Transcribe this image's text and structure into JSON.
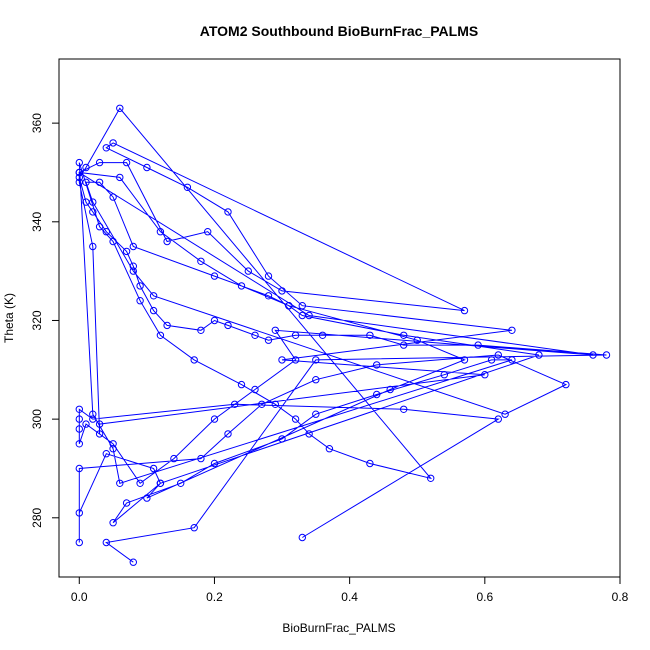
{
  "chart_data": {
    "type": "scatter",
    "title": "ATOM2 Southbound BioBurnFrac_PALMS",
    "xlabel": "BioBurnFrac_PALMS",
    "ylabel": "Theta (K)",
    "xlim": [
      -0.03,
      0.8
    ],
    "ylim": [
      268,
      373
    ],
    "xticks": [
      0.0,
      0.2,
      0.4,
      0.6,
      0.8
    ],
    "xtick_labels": [
      "0.0",
      "0.2",
      "0.4",
      "0.6",
      "0.8"
    ],
    "yticks": [
      280,
      300,
      320,
      340,
      360
    ],
    "ytick_labels": [
      "280",
      "300",
      "320",
      "340",
      "360"
    ],
    "grid": false,
    "legend": "none",
    "color": "#0000ff",
    "series": [
      {
        "style": "points-and-lines",
        "x": [
          0.33,
          0.62,
          0.48,
          0.23,
          0.02,
          0.0,
          0.0,
          0.0,
          0.0,
          0.01,
          0.05,
          0.09,
          0.14,
          0.2,
          0.26,
          0.32,
          0.29,
          0.76,
          0.34,
          0.0,
          0.03,
          0.07,
          0.13,
          0.19,
          0.25,
          0.3,
          0.57,
          0.05,
          0.04,
          0.1,
          0.16,
          0.22,
          0.28,
          0.33,
          0.64,
          0.3,
          0.6,
          0.03,
          0.03,
          0.02,
          0.0,
          0.0,
          0.06,
          0.12,
          0.18,
          0.24,
          0.31,
          0.5,
          0.57,
          0.46,
          0.1,
          0.12,
          0.11,
          0.04,
          0.0,
          0.0,
          0.0,
          0.18,
          0.22,
          0.27,
          0.35,
          0.44,
          0.62,
          0.72,
          0.63,
          0.11,
          0.08,
          0.02,
          0.01,
          0.03,
          0.05,
          0.08,
          0.2,
          0.28,
          0.31,
          0.33,
          0.48,
          0.68,
          0.12,
          0.05,
          0.07,
          0.15,
          0.2,
          0.3,
          0.35,
          0.44,
          0.54,
          0.61,
          0.64,
          0.06,
          0.05,
          0.02,
          0.0,
          0.03,
          0.05,
          0.09,
          0.12,
          0.17,
          0.24,
          0.29,
          0.32,
          0.34,
          0.37,
          0.43,
          0.52,
          0.06,
          0.01,
          0.0,
          0.01,
          0.02,
          0.04,
          0.07,
          0.08,
          0.09,
          0.11,
          0.13,
          0.18,
          0.2,
          0.22,
          0.26,
          0.28,
          0.32,
          0.36,
          0.43,
          0.48,
          0.59,
          0.78,
          0.35,
          0.17,
          0.04,
          0.08
        ],
        "y": [
          276,
          300,
          302,
          303,
          300,
          302,
          300,
          298,
          295,
          299,
          295,
          287,
          292,
          300,
          306,
          312,
          318,
          313,
          321,
          350,
          352,
          352,
          336,
          338,
          330,
          326,
          322,
          356,
          355,
          351,
          347,
          342,
          329,
          323,
          318,
          312,
          309,
          299,
          297,
          335,
          348,
          350,
          349,
          338,
          332,
          327,
          323,
          316,
          312,
          306,
          284,
          287,
          290,
          293,
          281,
          275,
          290,
          292,
          297,
          303,
          308,
          311,
          313,
          307,
          301,
          325,
          330,
          344,
          348,
          348,
          345,
          335,
          329,
          325,
          323,
          321,
          317,
          313,
          287,
          279,
          283,
          287,
          291,
          296,
          301,
          305,
          309,
          312,
          312,
          287,
          294,
          301,
          352,
          339,
          336,
          324,
          317,
          312,
          307,
          303,
          300,
          297,
          294,
          291,
          288,
          363,
          351,
          349,
          344,
          342,
          338,
          334,
          331,
          327,
          322,
          319,
          318,
          320,
          319,
          317,
          316,
          317,
          317,
          317,
          315,
          315,
          313,
          312,
          278,
          275,
          271
        ]
      }
    ]
  }
}
